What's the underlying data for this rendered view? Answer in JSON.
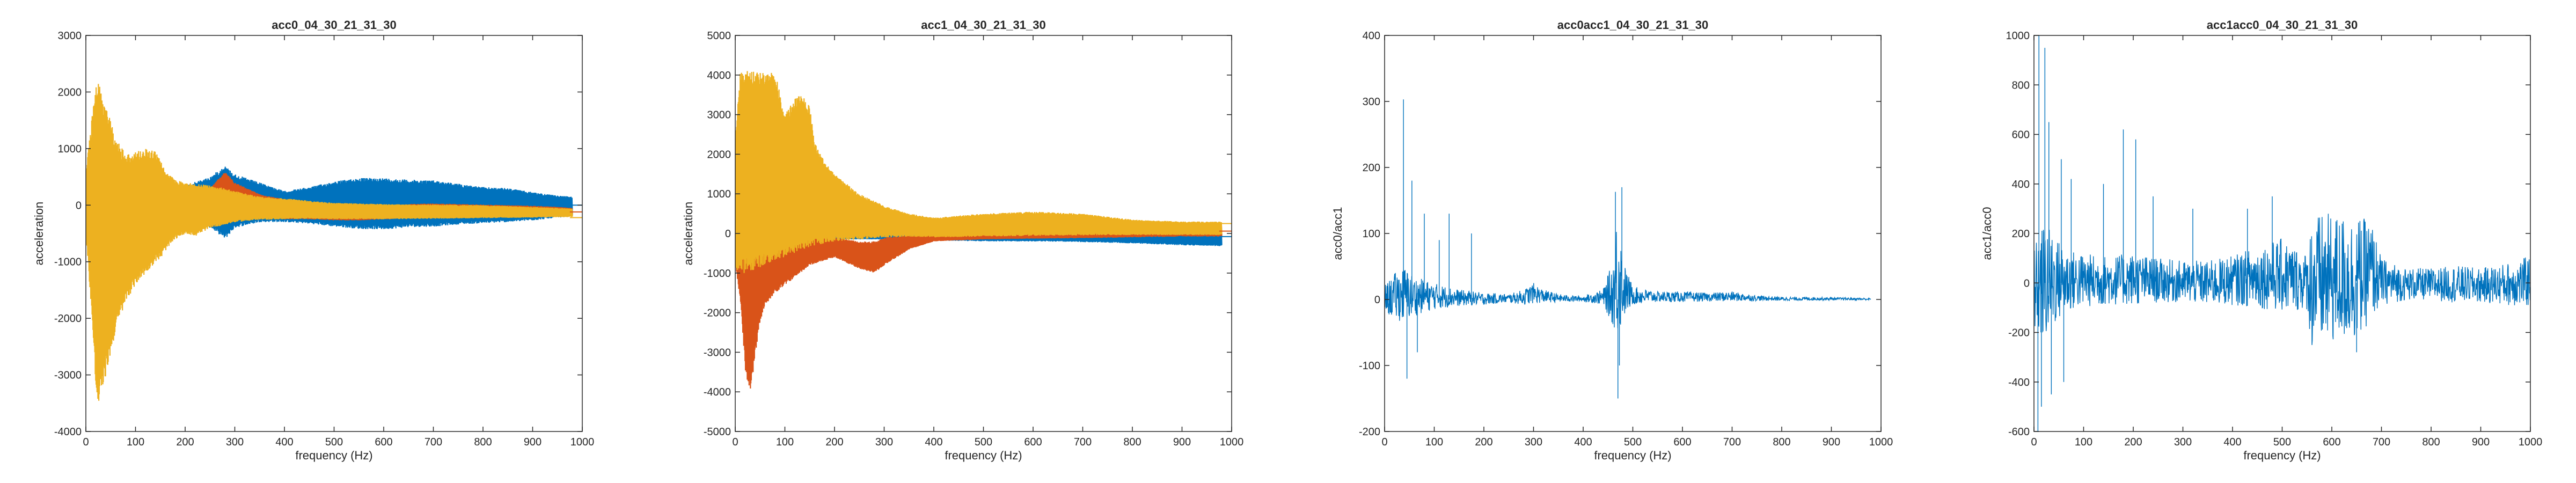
{
  "chart_data": [
    {
      "type": "area",
      "title": "acc0_04_30_21_31_30",
      "xlabel": "frequency (Hz)",
      "ylabel": "acceleration",
      "xlim": [
        0,
        1000
      ],
      "ylim": [
        -4000,
        3000
      ],
      "xticks": [
        "0",
        "100",
        "200",
        "300",
        "400",
        "500",
        "600",
        "700",
        "800",
        "900",
        "1000"
      ],
      "yticks": [
        "-4000",
        "-3000",
        "-2000",
        "-1000",
        "0",
        "1000",
        "2000",
        "3000"
      ],
      "grid": false,
      "series": [
        {
          "color": "#0072BD",
          "x": [
            0,
            50,
            100,
            150,
            200,
            250,
            280,
            300,
            350,
            400,
            450,
            500,
            550,
            600,
            650,
            700,
            750,
            800,
            850,
            900,
            950,
            980
          ],
          "upper": [
            300,
            300,
            350,
            350,
            350,
            500,
            700,
            550,
            400,
            250,
            320,
            420,
            480,
            480,
            450,
            440,
            380,
            320,
            300,
            230,
            170,
            150
          ],
          "lower": [
            -300,
            -300,
            -300,
            -300,
            -300,
            -400,
            -600,
            -400,
            -300,
            -300,
            -330,
            -380,
            -420,
            -430,
            -390,
            -380,
            -340,
            -320,
            -300,
            -270,
            -220,
            -200
          ]
        },
        {
          "color": "#D95319",
          "x": [
            0,
            50,
            100,
            150,
            200,
            250,
            280,
            300,
            350,
            400,
            450,
            500,
            550,
            600,
            650,
            700,
            750,
            800,
            850,
            900,
            950,
            980
          ],
          "upper": [
            150,
            150,
            200,
            200,
            250,
            300,
            600,
            400,
            200,
            100,
            0,
            0,
            -50,
            -20,
            20,
            30,
            20,
            10,
            0,
            -10,
            -30,
            -50
          ],
          "lower": [
            -150,
            -150,
            -200,
            -200,
            -250,
            -200,
            -100,
            -150,
            -150,
            -250,
            -250,
            -270,
            -270,
            -250,
            -230,
            -220,
            -200,
            -200,
            -190,
            -180,
            -170,
            -160
          ]
        },
        {
          "color": "#EDB120",
          "x": [
            0,
            10,
            20,
            25,
            30,
            40,
            50,
            60,
            80,
            100,
            120,
            140,
            150,
            160,
            180,
            200,
            220,
            250,
            280,
            300,
            350,
            400,
            450,
            500,
            600,
            700,
            800,
            900,
            980
          ],
          "upper": [
            600,
            1400,
            2100,
            2250,
            2000,
            1800,
            1500,
            1200,
            900,
            950,
            1000,
            950,
            800,
            600,
            450,
            400,
            380,
            350,
            300,
            250,
            150,
            120,
            80,
            40,
            20,
            10,
            0,
            -30,
            -60
          ],
          "lower": [
            -600,
            -1800,
            -3400,
            -3600,
            -3300,
            -3000,
            -2600,
            -2200,
            -1700,
            -1400,
            -1200,
            -1000,
            -950,
            -800,
            -600,
            -500,
            -550,
            -400,
            -350,
            -300,
            -260,
            -250,
            -240,
            -250,
            -250,
            -240,
            -230,
            -220,
            -210
          ]
        }
      ],
      "end_lines": [
        {
          "color": "#0072BD",
          "y": 0
        },
        {
          "color": "#D95319",
          "y": -120
        },
        {
          "color": "#EDB120",
          "y": -220
        }
      ]
    },
    {
      "type": "area",
      "title": "acc1_04_30_21_31_30",
      "xlabel": "frequency (Hz)",
      "ylabel": "acceleration",
      "xlim": [
        0,
        1000
      ],
      "ylim": [
        -5000,
        5000
      ],
      "xticks": [
        "0",
        "100",
        "200",
        "300",
        "400",
        "500",
        "600",
        "700",
        "800",
        "900",
        "1000"
      ],
      "yticks": [
        "-5000",
        "-4000",
        "-3000",
        "-2000",
        "-1000",
        "0",
        "1000",
        "2000",
        "3000",
        "4000",
        "5000"
      ],
      "grid": false,
      "series": [
        {
          "color": "#0072BD",
          "x": [
            0,
            100,
            200,
            300,
            350,
            400,
            500,
            600,
            700,
            800,
            900,
            980
          ],
          "upper": [
            100,
            100,
            120,
            100,
            100,
            120,
            150,
            150,
            170,
            160,
            150,
            140
          ],
          "lower": [
            -100,
            -100,
            -150,
            -150,
            -150,
            -180,
            -200,
            -200,
            -220,
            -250,
            -300,
            -320
          ]
        },
        {
          "color": "#D95319",
          "x": [
            0,
            10,
            20,
            30,
            40,
            50,
            60,
            80,
            100,
            120,
            150,
            200,
            250,
            280,
            300,
            350,
            400,
            500,
            600,
            700,
            800,
            900,
            980
          ],
          "upper": [
            200,
            300,
            300,
            300,
            300,
            250,
            200,
            150,
            100,
            100,
            0,
            -100,
            -200,
            -200,
            -100,
            -50,
            0,
            0,
            20,
            100,
            200,
            250,
            260
          ],
          "lower": [
            -800,
            -1800,
            -3500,
            -4100,
            -3000,
            -2200,
            -1800,
            -1500,
            -1300,
            -1100,
            -800,
            -600,
            -900,
            -1000,
            -800,
            -400,
            -200,
            -150,
            -130,
            -120,
            -100,
            -80,
            -80
          ]
        },
        {
          "color": "#EDB120",
          "x": [
            0,
            10,
            20,
            40,
            60,
            80,
            100,
            120,
            130,
            140,
            150,
            160,
            180,
            200,
            250,
            300,
            350,
            400,
            500,
            600,
            700,
            800,
            900,
            980
          ],
          "upper": [
            2500,
            4100,
            4100,
            4100,
            4100,
            4100,
            3000,
            3400,
            3500,
            3400,
            3200,
            2300,
            1800,
            1500,
            1000,
            700,
            500,
            400,
            500,
            550,
            500,
            350,
            300,
            300
          ],
          "lower": [
            -900,
            -1000,
            -1000,
            -900,
            -800,
            -700,
            -600,
            -500,
            -450,
            -400,
            -350,
            -300,
            -250,
            -200,
            -150,
            -100,
            -80,
            -100,
            -80,
            -60,
            -50,
            -40,
            -40,
            -40
          ]
        }
      ],
      "end_lines": [
        {
          "color": "#0072BD",
          "y": -80
        },
        {
          "color": "#D95319",
          "y": 60
        },
        {
          "color": "#EDB120",
          "y": 250
        }
      ]
    },
    {
      "type": "line",
      "title": "acc0acc1_04_30_21_31_30",
      "xlabel": "frequency (Hz)",
      "ylabel": "acc0/acc1",
      "xlim": [
        0,
        1000
      ],
      "ylim": [
        -200,
        400
      ],
      "xticks": [
        "0",
        "100",
        "200",
        "300",
        "400",
        "500",
        "600",
        "700",
        "800",
        "900",
        "1000"
      ],
      "yticks": [
        "-200",
        "-100",
        "0",
        "100",
        "200",
        "300",
        "400"
      ],
      "grid": false,
      "color": "#0072BD",
      "envelope": {
        "x": [
          0,
          20,
          40,
          60,
          80,
          100,
          150,
          200,
          250,
          280,
          300,
          320,
          350,
          400,
          440,
          460,
          470,
          480,
          500,
          550,
          600,
          650,
          700,
          750,
          800,
          900,
          980
        ],
        "upper": [
          20,
          40,
          50,
          35,
          30,
          25,
          15,
          10,
          8,
          15,
          25,
          15,
          8,
          5,
          15,
          60,
          150,
          60,
          20,
          12,
          12,
          10,
          12,
          6,
          4,
          3,
          2
        ],
        "lower": [
          -20,
          -30,
          -35,
          -25,
          -20,
          -15,
          -10,
          -8,
          -5,
          -8,
          -6,
          -5,
          -4,
          -3,
          -8,
          -40,
          -60,
          -30,
          -8,
          -4,
          -4,
          -3,
          -3,
          -2,
          -2,
          -1,
          -1
        ]
      },
      "spikes": [
        {
          "x": 38,
          "y": 303
        },
        {
          "x": 55,
          "y": 180
        },
        {
          "x": 80,
          "y": 130
        },
        {
          "x": 130,
          "y": 130
        },
        {
          "x": 110,
          "y": 90
        },
        {
          "x": 175,
          "y": 100
        },
        {
          "x": 45,
          "y": -120
        },
        {
          "x": 66,
          "y": -80
        },
        {
          "x": 465,
          "y": 163
        },
        {
          "x": 478,
          "y": 170
        },
        {
          "x": 470,
          "y": -150
        },
        {
          "x": 473,
          "y": -100
        }
      ]
    },
    {
      "type": "line",
      "title": "acc1acc0_04_30_21_31_30",
      "xlabel": "frequency (Hz)",
      "ylabel": "acc1/acc0",
      "xlim": [
        0,
        1000
      ],
      "ylim": [
        -600,
        1000
      ],
      "xticks": [
        "0",
        "100",
        "200",
        "300",
        "400",
        "500",
        "600",
        "700",
        "800",
        "900",
        "1000"
      ],
      "yticks": [
        "-600",
        "-400",
        "-200",
        "0",
        "200",
        "400",
        "600",
        "800",
        "1000"
      ],
      "grid": false,
      "color": "#0072BD",
      "envelope": {
        "x": [
          0,
          20,
          40,
          60,
          80,
          100,
          150,
          200,
          250,
          300,
          350,
          400,
          450,
          500,
          550,
          560,
          600,
          650,
          680,
          700,
          750,
          800,
          850,
          900,
          950,
          1000
        ],
        "upper": [
          150,
          250,
          200,
          150,
          130,
          120,
          110,
          120,
          100,
          90,
          90,
          110,
          150,
          180,
          120,
          280,
          280,
          270,
          250,
          100,
          60,
          60,
          70,
          60,
          80,
          110
        ],
        "lower": [
          -200,
          -250,
          -180,
          -130,
          -110,
          -100,
          -90,
          -90,
          -80,
          -80,
          -90,
          -90,
          -100,
          -120,
          -110,
          -280,
          -250,
          -230,
          -150,
          -90,
          -70,
          -70,
          -80,
          -80,
          -90,
          -100
        ]
      },
      "spikes": [
        {
          "x": 10,
          "y": 1000
        },
        {
          "x": 22,
          "y": 950
        },
        {
          "x": 30,
          "y": 650
        },
        {
          "x": 55,
          "y": 500
        },
        {
          "x": 75,
          "y": 420
        },
        {
          "x": 180,
          "y": 620
        },
        {
          "x": 205,
          "y": 580
        },
        {
          "x": 140,
          "y": 400
        },
        {
          "x": 240,
          "y": 350
        },
        {
          "x": 320,
          "y": 300
        },
        {
          "x": 430,
          "y": 300
        },
        {
          "x": 480,
          "y": 350
        },
        {
          "x": 8,
          "y": -600
        },
        {
          "x": 35,
          "y": -450
        },
        {
          "x": 60,
          "y": -400
        },
        {
          "x": 15,
          "y": -500
        },
        {
          "x": 650,
          "y": -280
        }
      ]
    }
  ]
}
